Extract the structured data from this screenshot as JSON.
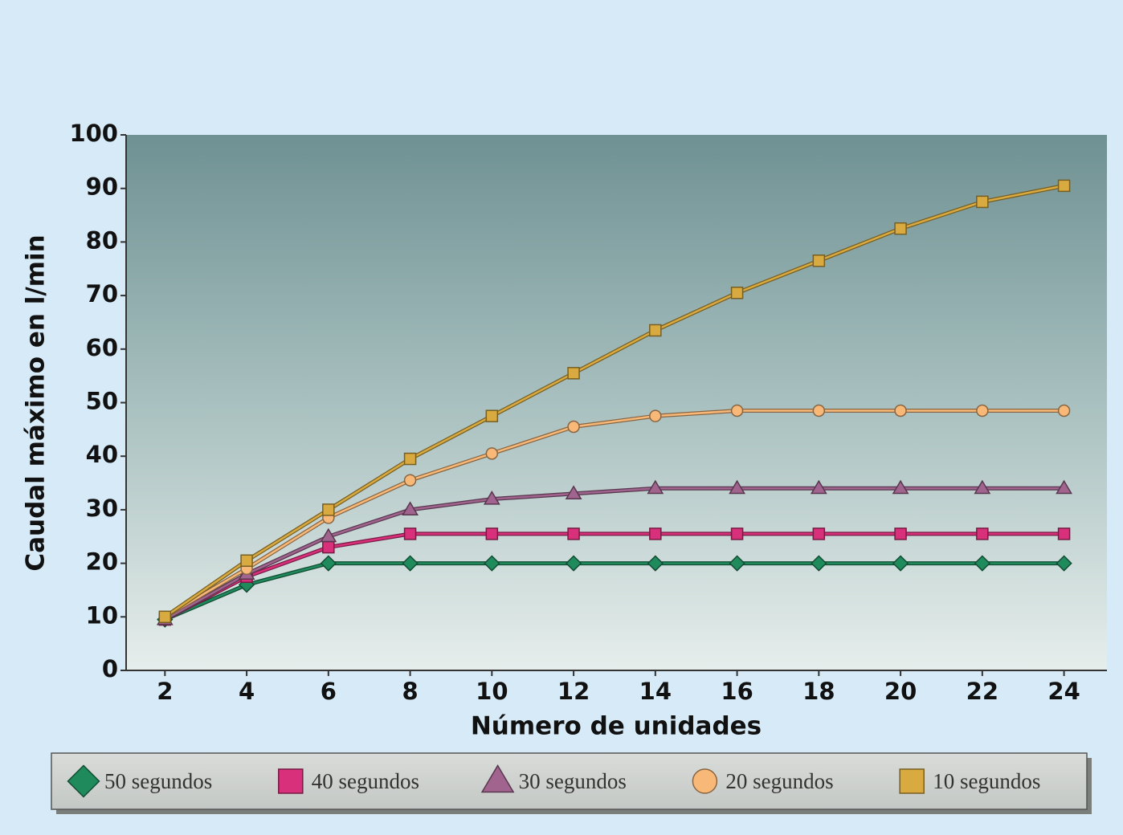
{
  "chart_data": {
    "type": "line",
    "x_label": "Número de unidades",
    "y_label": "Caudal máximo en l/min",
    "x": [
      2,
      4,
      6,
      8,
      10,
      12,
      14,
      16,
      18,
      20,
      22,
      24
    ],
    "xlim": [
      1.05,
      25.05
    ],
    "xticks": [
      2,
      4,
      6,
      8,
      10,
      12,
      14,
      16,
      18,
      20,
      22,
      24
    ],
    "ylim": [
      0,
      100
    ],
    "yticks": [
      0,
      10,
      20,
      30,
      40,
      50,
      60,
      70,
      80,
      90,
      100
    ],
    "legend": "bottom",
    "series": [
      {
        "name": "50 segundos",
        "color": "#1f8a5c",
        "marker": "diamond",
        "values": [
          9.5,
          16,
          20,
          20,
          20,
          20,
          20,
          20,
          20,
          20,
          20,
          20
        ]
      },
      {
        "name": "40 segundos",
        "color": "#d8307a",
        "marker": "square",
        "values": [
          9.5,
          17.5,
          23,
          25.5,
          25.5,
          25.5,
          25.5,
          25.5,
          25.5,
          25.5,
          25.5,
          25.5
        ]
      },
      {
        "name": "30 segundos",
        "color": "#a0648e",
        "marker": "triangle",
        "values": [
          9.5,
          18,
          25,
          30,
          32,
          33,
          34,
          34,
          34,
          34,
          34,
          34
        ]
      },
      {
        "name": "20 segundos",
        "color": "#f8b878",
        "marker": "circle",
        "values": [
          10,
          19,
          28.5,
          35.5,
          40.5,
          45.5,
          47.5,
          48.5,
          48.5,
          48.5,
          48.5,
          48.5
        ]
      },
      {
        "name": "10 segundos",
        "color": "#d8aa40",
        "marker": "square",
        "values": [
          10,
          20.5,
          30,
          39.5,
          47.5,
          55.5,
          63.5,
          70.5,
          76.5,
          82.5,
          87.5,
          90.5
        ]
      }
    ]
  }
}
